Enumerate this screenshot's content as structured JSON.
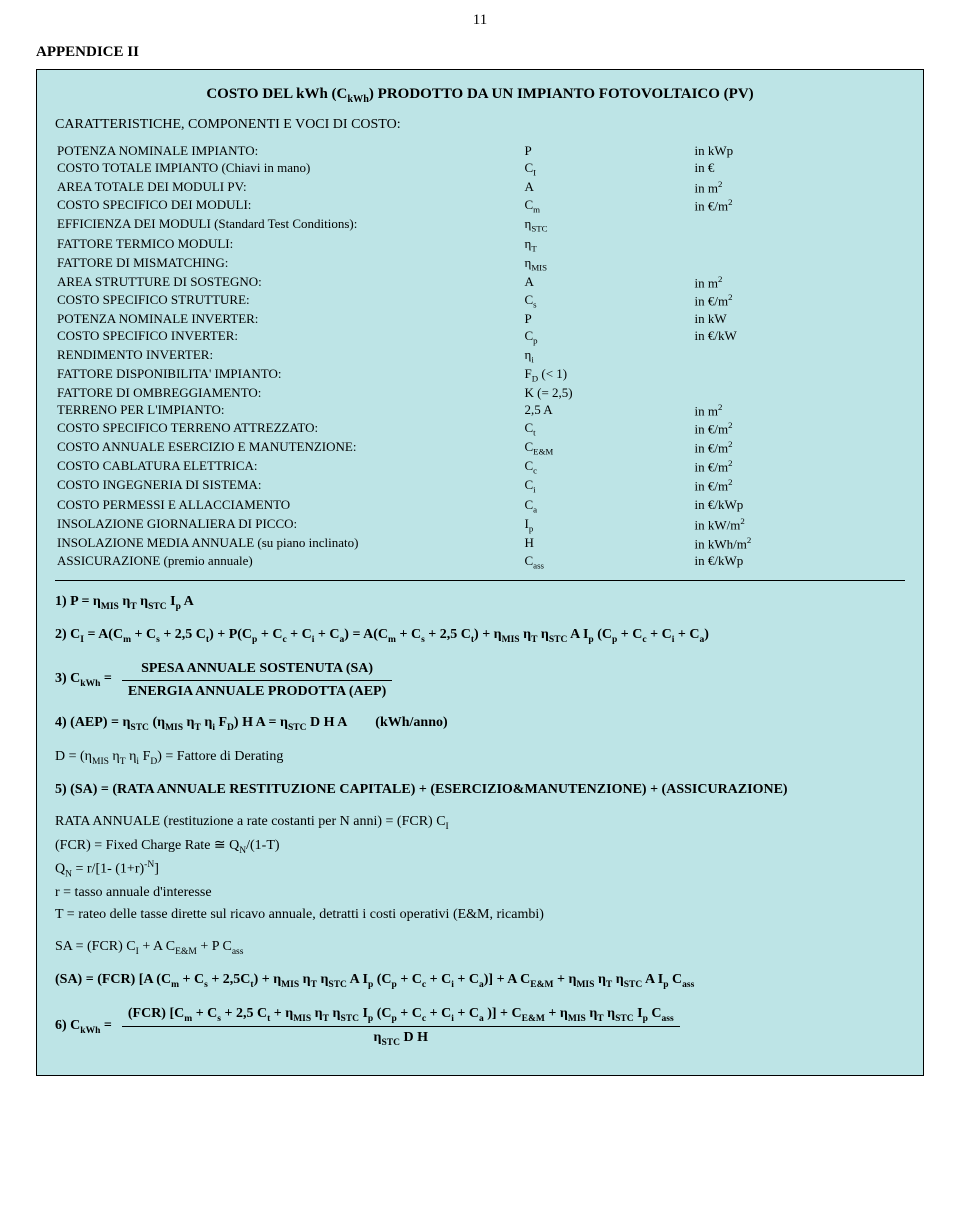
{
  "page_number": "11",
  "appendix_title": "APPENDICE II",
  "panel": {
    "title_html": "COSTO DEL kWh (C<span class='sub'>kWh</span>) PRODOTTO DA UN IMPIANTO FOTOVOLTAICO (PV)",
    "section_title": "CARATTERISTICHE, COMPONENTI E VOCI DI COSTO:",
    "background_color": "#bde4e6",
    "rows": [
      {
        "label": "POTENZA NOMINALE IMPIANTO:",
        "sym": "P",
        "unit": "in kWp"
      },
      {
        "label": "COSTO TOTALE IMPIANTO (Chiavi in mano)",
        "sym": "C<span class='sub'>I</span>",
        "unit": "in €"
      },
      {
        "label": "AREA TOTALE DEI MODULI PV:",
        "sym": "A",
        "unit": "in m<span class='sup'>2</span>"
      },
      {
        "label": "COSTO SPECIFICO DEI MODULI:",
        "sym": "C<span class='sub'>m</span>",
        "unit": "in €/m<span class='sup'>2</span>"
      },
      {
        "label": "EFFICIENZA DEI MODULI (Standard Test Conditions):",
        "sym": "η<span class='sub'>STC</span>",
        "unit": ""
      },
      {
        "label": "FATTORE TERMICO MODULI:",
        "sym": "η<span class='sub'>T</span>",
        "unit": ""
      },
      {
        "label": "FATTORE DI MISMATCHING:",
        "sym": "η<span class='sub'>MIS</span>",
        "unit": ""
      },
      {
        "label": "AREA STRUTTURE DI SOSTEGNO:",
        "sym": "A",
        "unit": "in m<span class='sup'>2</span>"
      },
      {
        "label": "COSTO SPECIFICO STRUTTURE:",
        "sym": "C<span class='sub'>s</span>",
        "unit": "in €/m<span class='sup'>2</span>"
      },
      {
        "label": "POTENZA NOMINALE INVERTER:",
        "sym": "P",
        "unit": "in kW"
      },
      {
        "label": "COSTO SPECIFICO INVERTER:",
        "sym": "C<span class='sub'>p</span>",
        "unit": "in €/kW"
      },
      {
        "label": "RENDIMENTO INVERTER:",
        "sym": "η<span class='sub'>i</span>",
        "unit": ""
      },
      {
        "label": "FATTORE DISPONIBILITA' IMPIANTO:",
        "sym": "F<span class='sub'>D</span> (&lt; 1)",
        "unit": ""
      },
      {
        "label": "FATTORE DI OMBREGGIAMENTO:",
        "sym": "K (= 2,5)",
        "unit": ""
      },
      {
        "label": "TERRENO PER L'IMPIANTO:",
        "sym": "2,5 A",
        "unit": "in m<span class='sup'>2</span>"
      },
      {
        "label": "COSTO SPECIFICO TERRENO ATTREZZATO:",
        "sym": "C<span class='sub'>t</span>",
        "unit": "in €/m<span class='sup'>2</span>"
      },
      {
        "label": "COSTO ANNUALE ESERCIZIO E MANUTENZIONE:",
        "sym": "C<span class='sub'>E&amp;M</span>",
        "unit": "in €/m<span class='sup'>2</span>"
      },
      {
        "label": "COSTO CABLATURA ELETTRICA:",
        "sym": "C<span class='sub'>c</span>",
        "unit": "in €/m<span class='sup'>2</span>"
      },
      {
        "label": "COSTO INGEGNERIA DI SISTEMA:",
        "sym": "C<span class='sub'>i</span>",
        "unit": "in €/m<span class='sup'>2</span>"
      },
      {
        "label": "COSTO PERMESSI E ALLACCIAMENTO",
        "sym": "C<span class='sub'>a</span>",
        "unit": "in €/kWp"
      },
      {
        "label": "INSOLAZIONE GIORNALIERA DI PICCO:",
        "sym": "I<span class='sub'>p</span>",
        "unit": "in kW/m<span class='sup'>2</span>"
      },
      {
        "label": "INSOLAZIONE MEDIA ANNUALE (su piano inclinato)",
        "sym": "H",
        "unit": "in kWh/m<span class='sup'>2</span>"
      },
      {
        "label": "ASSICURAZIONE (premio annuale)",
        "sym": "C<span class='sub'>ass</span>",
        "unit": "in €/kWp"
      }
    ],
    "formulas": {
      "f1": "1) P = η<span class='sub'>MIS</span> η<span class='sub'>T</span> η<span class='sub'>STC</span> I<span class='sub'>p</span> A",
      "f2": "2) C<span class='sub'>I</span> = A(C<span class='sub'>m</span> + C<span class='sub'>s</span> + 2,5 C<span class='sub'>t</span>) + P(C<span class='sub'>p</span> + C<span class='sub'>c</span> + C<span class='sub'>i</span> + C<span class='sub'>a</span>) = A(C<span class='sub'>m</span> + C<span class='sub'>s</span> + 2,5 C<span class='sub'>t</span>) + η<span class='sub'>MIS</span> η<span class='sub'>T</span> η<span class='sub'>STC</span> A I<span class='sub'>p</span> (C<span class='sub'>p</span> + C<span class='sub'>c</span> + C<span class='sub'>i</span> + C<span class='sub'>a</span>)",
      "f3_lead": "3) C<span class='sub'>kWh</span> =",
      "f3_num": "SPESA ANNUALE SOSTENUTA (SA)",
      "f3_den": "ENERGIA ANNUALE PRODOTTA (AEP)",
      "f4": "4) (AEP) = η<span class='sub'>STC</span> (η<span class='sub'>MIS</span> η<span class='sub'>T</span> η<span class='sub'>i</span> F<span class='sub'>D</span>) H A = η<span class='sub'>STC</span> D H A&nbsp;&nbsp;&nbsp;&nbsp;&nbsp;&nbsp;&nbsp;&nbsp;(kWh/anno)",
      "f_d": "D = (η<span class='sub'>MIS</span> η<span class='sub'>T</span> η<span class='sub'>i</span> F<span class='sub'>D</span>) = Fattore di Derating",
      "f5": "5) (SA) = (RATA ANNUALE RESTITUZIONE CAPITALE) + (ESERCIZIO&amp;MANUTENZIONE) + (ASSICURAZIONE)",
      "rata1": "RATA ANNUALE (restituzione a rate costanti per N anni) = (FCR) C<span class='sub'>I</span>",
      "rata2": "(FCR) = Fixed Charge Rate ≅ Q<span class='sub'>N</span>/(1-T)",
      "rata3": "Q<span class='sub'>N</span> = r/[1- (1+r)<span class='sup'>-N</span>]",
      "rata4": "r = tasso annuale d'interesse",
      "rata5": "T = rateo delle tasse dirette sul ricavo annuale, detratti i costi operativi (E&amp;M, ricambi)",
      "sa1": "SA = (FCR) C<span class='sub'>I</span> + A C<span class='sub'>E&amp;M</span> + P C<span class='sub'>ass</span>",
      "sa2": "(SA) = (FCR) [A (C<span class='sub'>m</span> + C<span class='sub'>s</span> + 2,5C<span class='sub'>t</span>) + η<span class='sub'>MIS</span> η<span class='sub'>T</span> η<span class='sub'>STC</span> A I<span class='sub'>p</span> (C<span class='sub'>p</span> + C<span class='sub'>c</span> + C<span class='sub'>i</span> + C<span class='sub'>a</span>)] + A C<span class='sub'>E&amp;M</span> + η<span class='sub'>MIS</span> η<span class='sub'>T</span> η<span class='sub'>STC</span> A I<span class='sub'>p</span> C<span class='sub'>ass</span>",
      "f6_lead": "6) C<span class='sub'>kWh</span> =",
      "f6_num": "(FCR) [C<span class='sub'>m</span> + C<span class='sub'>s</span> + 2,5 C<span class='sub'>t</span> + η<span class='sub'>MIS</span> η<span class='sub'>T</span> η<span class='sub'>STC</span> I<span class='sub'>p</span> (C<span class='sub'>p</span> + C<span class='sub'>c</span> + C<span class='sub'>i</span> + C<span class='sub'>a</span> )] + C<span class='sub'>E&amp;M</span> + η<span class='sub'>MIS</span> η<span class='sub'>T</span> η<span class='sub'>STC</span>  I<span class='sub'>p</span> C<span class='sub'>ass</span>",
      "f6_den": "η<span class='sub'>STC</span> D H"
    }
  }
}
